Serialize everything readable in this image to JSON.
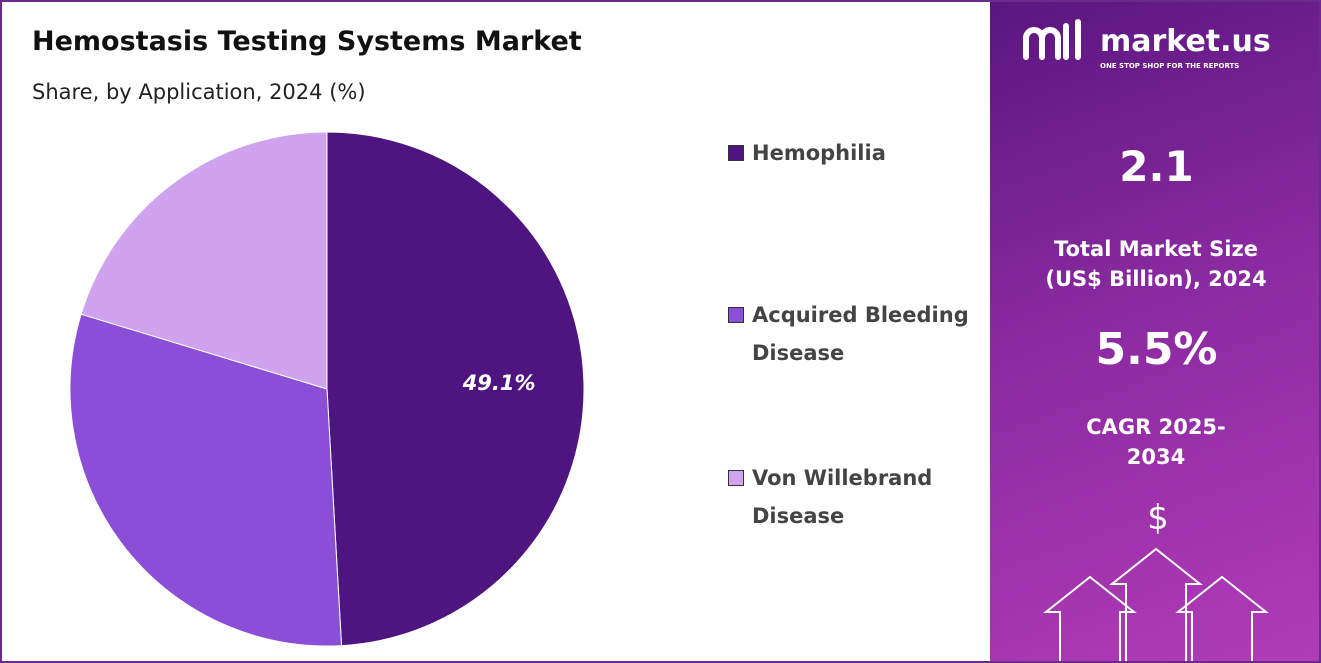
{
  "chart_data": {
    "type": "pie",
    "title": "Hemostasis Testing Systems Market",
    "subtitle": "Share, by Application, 2024 (%)",
    "categories": [
      "Hemophilia",
      "Acquired Bleeding Disease",
      "Von Willebrand Disease"
    ],
    "values": [
      49.1,
      30.6,
      20.3
    ],
    "value_labels": [
      "49.1%",
      null,
      null
    ],
    "colors": [
      "#4e1580",
      "#8a4fd6",
      "#cfa3ee"
    ],
    "legend": "right"
  },
  "panel": {
    "brand": "market.us",
    "tagline": "ONE STOP SHOP FOR THE REPORTS",
    "market_size": "2.1",
    "market_size_label": "Total Market Size (US$ Billion), 2024",
    "cagr": "5.5%",
    "cagr_label": "CAGR 2025-2034"
  }
}
